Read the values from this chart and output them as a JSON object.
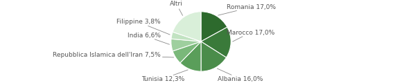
{
  "labels": [
    "Romania",
    "Marocco",
    "Albania",
    "Tunisia",
    "Repubblica Islamica dell'Iran",
    "India",
    "Filippine",
    "Altri"
  ],
  "values": [
    17.0,
    17.0,
    16.0,
    12.3,
    7.5,
    6.6,
    3.8,
    19.8
  ],
  "colors": [
    "#2d6a2d",
    "#3a7a3a",
    "#4a8c4a",
    "#5a9e5a",
    "#7ab87a",
    "#9ecf9e",
    "#c2e3c2",
    "#d9efd9"
  ],
  "label_texts": [
    "Romania 17,0%",
    "Marocco 17,0%",
    "Albania 16,0%",
    "Tunisia 12,3%",
    "Repubblica Islamica dell'Iran 7,5%",
    "India 6,6%",
    "Filippine 3,8%",
    "Altri"
  ],
  "text_color": "#555555",
  "bg_color": "#ffffff",
  "figsize": [
    5.8,
    1.2
  ],
  "dpi": 100
}
